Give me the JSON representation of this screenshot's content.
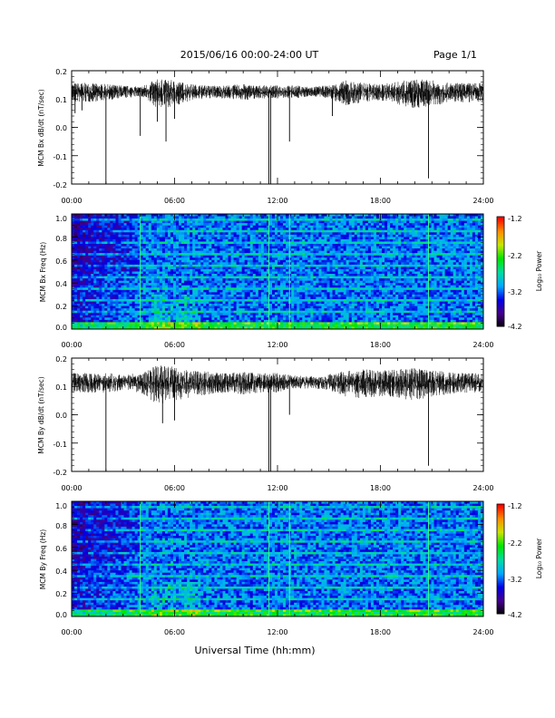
{
  "header": {
    "title": "2015/06/16  00:00-24:00 UT",
    "page": "Page 1/1"
  },
  "footer": {
    "xlabel": "Universal Time (hh:mm)"
  },
  "chart_data": [
    {
      "type": "line",
      "ylabel": "MCM Bx dB/dt (nT/sec)",
      "xlim": [
        0,
        24
      ],
      "ylim": [
        -0.2,
        0.2
      ],
      "x_ticks": [
        "00:00",
        "06:00",
        "12:00",
        "18:00",
        "24:00"
      ],
      "y_ticks": [
        "0.2",
        "0.1",
        "0.0",
        "-0.1",
        "-0.2"
      ],
      "baseline": 0.13,
      "envelope": [
        [
          0,
          0.03
        ],
        [
          1,
          0.03
        ],
        [
          2,
          0.025
        ],
        [
          3,
          0.02
        ],
        [
          4,
          0.015
        ],
        [
          5,
          0.045
        ],
        [
          6,
          0.04
        ],
        [
          7,
          0.025
        ],
        [
          8,
          0.02
        ],
        [
          9,
          0.02
        ],
        [
          10,
          0.025
        ],
        [
          11,
          0.02
        ],
        [
          12,
          0.02
        ],
        [
          13,
          0.02
        ],
        [
          14,
          0.015
        ],
        [
          15,
          0.02
        ],
        [
          15.5,
          0.03
        ],
        [
          16,
          0.04
        ],
        [
          17,
          0.03
        ],
        [
          18,
          0.025
        ],
        [
          19,
          0.035
        ],
        [
          20,
          0.045
        ],
        [
          21,
          0.04
        ],
        [
          22,
          0.03
        ],
        [
          23,
          0.03
        ],
        [
          24,
          0.03
        ]
      ],
      "spikes": [
        [
          0.2,
          0.05
        ],
        [
          0.6,
          0.06
        ],
        [
          2.0,
          -0.2
        ],
        [
          4.0,
          -0.03
        ],
        [
          5.0,
          0.02
        ],
        [
          5.5,
          -0.05
        ],
        [
          6.0,
          0.03
        ],
        [
          11.5,
          -0.2
        ],
        [
          11.6,
          -0.2
        ],
        [
          12.7,
          -0.05
        ],
        [
          15.2,
          0.04
        ],
        [
          20.8,
          -0.18
        ]
      ]
    },
    {
      "type": "heatmap",
      "ylabel": "MCM Bx Freq (Hz)",
      "colorbar_label": "Log₁₀ Power",
      "xlim": [
        0,
        24
      ],
      "ylim": [
        0,
        1.0
      ],
      "x_ticks": [
        "00:00",
        "06:00",
        "12:00",
        "18:00",
        "24:00"
      ],
      "y_ticks": [
        "1.0",
        "0.8",
        "0.6",
        "0.4",
        "0.2",
        "0.0"
      ],
      "colorbar_ticks": [
        "-1.2",
        "-2.2",
        "-3.2",
        "-4.2"
      ],
      "clim": [
        -4.2,
        -1.2
      ],
      "vertical_lines": [
        4.0,
        11.5,
        12.7,
        20.8
      ],
      "harmonic_spacing_hz": 0.05
    },
    {
      "type": "line",
      "ylabel": "MCM By dB/dt (nT/sec)",
      "xlim": [
        0,
        24
      ],
      "ylim": [
        -0.2,
        0.2
      ],
      "x_ticks": [
        "00:00",
        "06:00",
        "12:00",
        "18:00",
        "24:00"
      ],
      "y_ticks": [
        "0.2",
        "0.1",
        "0.0",
        "-0.1",
        "-0.2"
      ],
      "baseline": 0.12,
      "envelope": [
        [
          0,
          0.03
        ],
        [
          1,
          0.03
        ],
        [
          2,
          0.03
        ],
        [
          3,
          0.025
        ],
        [
          4,
          0.03
        ],
        [
          5,
          0.06
        ],
        [
          6,
          0.055
        ],
        [
          7,
          0.04
        ],
        [
          8,
          0.035
        ],
        [
          9,
          0.03
        ],
        [
          10,
          0.035
        ],
        [
          11,
          0.03
        ],
        [
          12,
          0.03
        ],
        [
          13,
          0.02
        ],
        [
          14,
          0.02
        ],
        [
          15,
          0.025
        ],
        [
          16,
          0.04
        ],
        [
          17,
          0.045
        ],
        [
          18,
          0.04
        ],
        [
          19,
          0.045
        ],
        [
          20,
          0.05
        ],
        [
          21,
          0.04
        ],
        [
          22,
          0.035
        ],
        [
          23,
          0.03
        ],
        [
          24,
          0.03
        ]
      ],
      "spikes": [
        [
          2.0,
          -0.2
        ],
        [
          5.3,
          -0.03
        ],
        [
          6.0,
          -0.02
        ],
        [
          11.5,
          -0.2
        ],
        [
          11.6,
          -0.2
        ],
        [
          12.7,
          0.0
        ],
        [
          20.8,
          -0.18
        ]
      ]
    },
    {
      "type": "heatmap",
      "ylabel": "MCM By Freq (Hz)",
      "colorbar_label": "Log₁₀ Power",
      "xlim": [
        0,
        24
      ],
      "ylim": [
        0,
        1.0
      ],
      "x_ticks": [
        "00:00",
        "06:00",
        "12:00",
        "18:00",
        "24:00"
      ],
      "y_ticks": [
        "1.0",
        "0.8",
        "0.6",
        "0.4",
        "0.2",
        "0.0"
      ],
      "colorbar_ticks": [
        "-1.2",
        "-2.2",
        "-3.2",
        "-4.2"
      ],
      "clim": [
        -4.2,
        -1.2
      ],
      "vertical_lines": [
        4.0,
        11.5,
        12.7,
        20.8
      ],
      "harmonic_spacing_hz": 0.05
    }
  ]
}
